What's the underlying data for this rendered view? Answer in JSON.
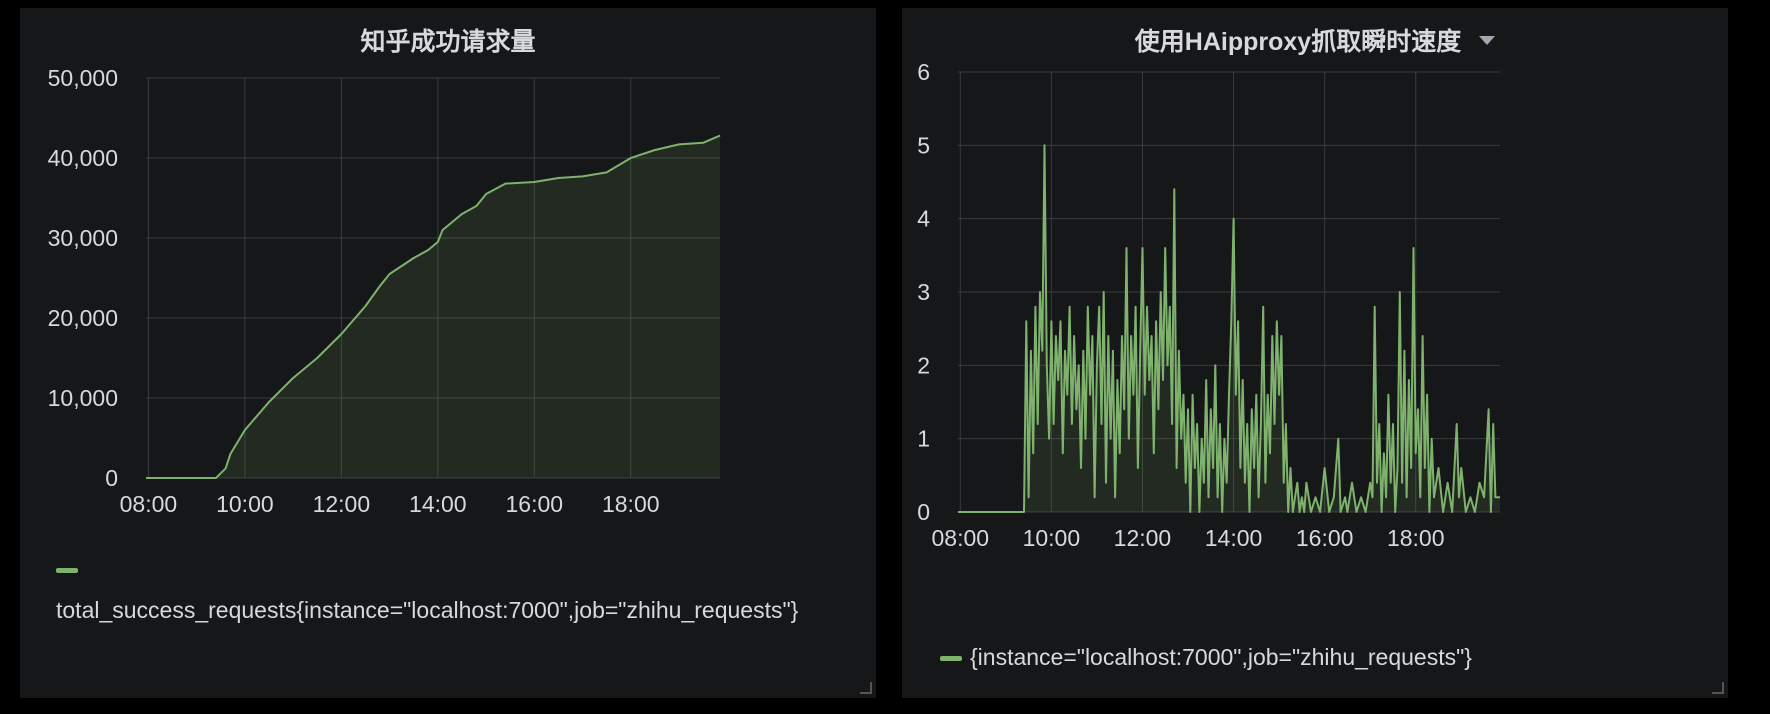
{
  "colors": {
    "series": "#7eb26d",
    "grid": "#3a3b3e",
    "panel": "#161719",
    "text": "#d8d9da"
  },
  "chart_data": [
    {
      "type": "area",
      "title": "知乎成功请求量",
      "xlabel": "",
      "ylabel": "",
      "x_ticks": [
        "08:00",
        "10:00",
        "12:00",
        "14:00",
        "16:00",
        "18:00"
      ],
      "y_ticks": [
        "0",
        "10,000",
        "20,000",
        "30,000",
        "40,000",
        "50,000"
      ],
      "xlim": [
        7.95,
        19.85
      ],
      "ylim": [
        0,
        50000
      ],
      "grid": true,
      "legend_position": "bottom-left",
      "series": [
        {
          "name": "total_success_requests{instance=\"localhost:7000\",job=\"zhihu_requests\"}",
          "points": [
            [
              7.95,
              0
            ],
            [
              9.4,
              0
            ],
            [
              9.6,
              1200
            ],
            [
              9.7,
              3000
            ],
            [
              10.0,
              6000
            ],
            [
              10.5,
              9500
            ],
            [
              11.0,
              12500
            ],
            [
              11.5,
              15000
            ],
            [
              12.0,
              18000
            ],
            [
              12.5,
              21500
            ],
            [
              12.8,
              24000
            ],
            [
              13.0,
              25500
            ],
            [
              13.5,
              27500
            ],
            [
              13.8,
              28500
            ],
            [
              14.0,
              29500
            ],
            [
              14.1,
              31000
            ],
            [
              14.5,
              33000
            ],
            [
              14.8,
              34000
            ],
            [
              15.0,
              35500
            ],
            [
              15.4,
              36800
            ],
            [
              16.0,
              37000
            ],
            [
              16.5,
              37500
            ],
            [
              17.0,
              37700
            ],
            [
              17.5,
              38200
            ],
            [
              18.0,
              40000
            ],
            [
              18.5,
              41000
            ],
            [
              19.0,
              41700
            ],
            [
              19.5,
              41900
            ],
            [
              19.85,
              42800
            ]
          ]
        }
      ]
    },
    {
      "type": "area",
      "title": "使用HAipproxy抓取瞬时速度",
      "xlabel": "",
      "ylabel": "",
      "x_ticks": [
        "08:00",
        "10:00",
        "12:00",
        "14:00",
        "16:00",
        "18:00"
      ],
      "y_ticks": [
        "0",
        "1",
        "2",
        "3",
        "4",
        "5",
        "6"
      ],
      "xlim": [
        7.95,
        19.85
      ],
      "ylim": [
        0,
        6
      ],
      "grid": true,
      "legend_position": "bottom-left",
      "series": [
        {
          "name": "{instance=\"localhost:7000\",job=\"zhihu_requests\"}",
          "points": [
            [
              7.95,
              0
            ],
            [
              9.4,
              0
            ],
            [
              9.45,
              2.6
            ],
            [
              9.5,
              0.2
            ],
            [
              9.55,
              2.2
            ],
            [
              9.6,
              0.8
            ],
            [
              9.65,
              2.8
            ],
            [
              9.7,
              1.2
            ],
            [
              9.75,
              3.0
            ],
            [
              9.8,
              2.2
            ],
            [
              9.85,
              5.0
            ],
            [
              9.9,
              2.0
            ],
            [
              9.95,
              1.0
            ],
            [
              10.0,
              2.6
            ],
            [
              10.05,
              1.2
            ],
            [
              10.1,
              2.4
            ],
            [
              10.15,
              1.8
            ],
            [
              10.2,
              2.6
            ],
            [
              10.25,
              0.8
            ],
            [
              10.3,
              2.2
            ],
            [
              10.35,
              1.6
            ],
            [
              10.4,
              2.8
            ],
            [
              10.45,
              1.2
            ],
            [
              10.5,
              2.4
            ],
            [
              10.55,
              1.4
            ],
            [
              10.6,
              2.0
            ],
            [
              10.65,
              0.6
            ],
            [
              10.7,
              2.2
            ],
            [
              10.75,
              1.0
            ],
            [
              10.8,
              2.8
            ],
            [
              10.85,
              1.6
            ],
            [
              10.9,
              2.4
            ],
            [
              10.95,
              0.2
            ],
            [
              11.0,
              2.0
            ],
            [
              11.05,
              2.8
            ],
            [
              11.1,
              1.2
            ],
            [
              11.15,
              3.0
            ],
            [
              11.2,
              0.4
            ],
            [
              11.25,
              2.4
            ],
            [
              11.3,
              1.0
            ],
            [
              11.35,
              2.2
            ],
            [
              11.4,
              0.2
            ],
            [
              11.45,
              1.8
            ],
            [
              11.5,
              0.8
            ],
            [
              11.55,
              2.4
            ],
            [
              11.6,
              1.4
            ],
            [
              11.65,
              3.6
            ],
            [
              11.7,
              1.0
            ],
            [
              11.75,
              2.4
            ],
            [
              11.8,
              1.6
            ],
            [
              11.85,
              2.8
            ],
            [
              11.9,
              0.6
            ],
            [
              11.95,
              2.2
            ],
            [
              12.0,
              3.6
            ],
            [
              12.05,
              1.6
            ],
            [
              12.1,
              2.8
            ],
            [
              12.15,
              1.8
            ],
            [
              12.2,
              2.4
            ],
            [
              12.25,
              0.8
            ],
            [
              12.3,
              2.6
            ],
            [
              12.35,
              1.4
            ],
            [
              12.4,
              3.0
            ],
            [
              12.45,
              1.8
            ],
            [
              12.5,
              3.6
            ],
            [
              12.55,
              2.0
            ],
            [
              12.6,
              2.8
            ],
            [
              12.65,
              1.2
            ],
            [
              12.7,
              4.4
            ],
            [
              12.75,
              0.6
            ],
            [
              12.8,
              2.2
            ],
            [
              12.85,
              1.0
            ],
            [
              12.9,
              1.6
            ],
            [
              12.95,
              0.4
            ],
            [
              13.0,
              1.4
            ],
            [
              13.05,
              0
            ],
            [
              13.1,
              1.6
            ],
            [
              13.15,
              0.6
            ],
            [
              13.2,
              1.2
            ],
            [
              13.25,
              0
            ],
            [
              13.3,
              1.0
            ],
            [
              13.35,
              0.4
            ],
            [
              13.4,
              1.8
            ],
            [
              13.45,
              0.2
            ],
            [
              13.5,
              1.4
            ],
            [
              13.55,
              0.6
            ],
            [
              13.6,
              2.0
            ],
            [
              13.65,
              0.2
            ],
            [
              13.7,
              1.2
            ],
            [
              13.75,
              0
            ],
            [
              13.8,
              1.0
            ],
            [
              13.85,
              0.4
            ],
            [
              13.9,
              1.6
            ],
            [
              13.95,
              2.6
            ],
            [
              14.0,
              4.0
            ],
            [
              14.05,
              1.6
            ],
            [
              14.1,
              2.6
            ],
            [
              14.15,
              0.6
            ],
            [
              14.2,
              1.8
            ],
            [
              14.25,
              0.4
            ],
            [
              14.3,
              1.2
            ],
            [
              14.35,
              0
            ],
            [
              14.4,
              1.4
            ],
            [
              14.45,
              0.6
            ],
            [
              14.5,
              1.6
            ],
            [
              14.55,
              0.2
            ],
            [
              14.6,
              1.2
            ],
            [
              14.65,
              2.8
            ],
            [
              14.7,
              0.4
            ],
            [
              14.75,
              1.6
            ],
            [
              14.8,
              0.8
            ],
            [
              14.85,
              2.4
            ],
            [
              14.9,
              1.2
            ],
            [
              14.95,
              2.6
            ],
            [
              15.0,
              1.6
            ],
            [
              15.05,
              2.4
            ],
            [
              15.1,
              0.4
            ],
            [
              15.15,
              1.2
            ],
            [
              15.2,
              0
            ],
            [
              15.25,
              0.6
            ],
            [
              15.3,
              0
            ],
            [
              15.35,
              0.2
            ],
            [
              15.4,
              0.4
            ],
            [
              15.45,
              0
            ],
            [
              15.5,
              0.2
            ],
            [
              15.55,
              0
            ],
            [
              15.6,
              0.4
            ],
            [
              15.65,
              0.2
            ],
            [
              15.7,
              0
            ],
            [
              15.8,
              0.2
            ],
            [
              15.9,
              0
            ],
            [
              16.0,
              0.6
            ],
            [
              16.1,
              0
            ],
            [
              16.2,
              0.2
            ],
            [
              16.3,
              1.0
            ],
            [
              16.35,
              0
            ],
            [
              16.45,
              0.2
            ],
            [
              16.5,
              0
            ],
            [
              16.6,
              0.4
            ],
            [
              16.7,
              0
            ],
            [
              16.8,
              0.2
            ],
            [
              16.9,
              0
            ],
            [
              17.0,
              0.4
            ],
            [
              17.05,
              0.2
            ],
            [
              17.1,
              2.8
            ],
            [
              17.15,
              0.4
            ],
            [
              17.2,
              1.2
            ],
            [
              17.25,
              0
            ],
            [
              17.3,
              0.8
            ],
            [
              17.35,
              0.2
            ],
            [
              17.4,
              1.6
            ],
            [
              17.45,
              0.4
            ],
            [
              17.5,
              1.2
            ],
            [
              17.55,
              0
            ],
            [
              17.6,
              0.6
            ],
            [
              17.65,
              3.0
            ],
            [
              17.7,
              0.4
            ],
            [
              17.75,
              2.2
            ],
            [
              17.8,
              0.2
            ],
            [
              17.85,
              1.8
            ],
            [
              17.9,
              0.6
            ],
            [
              17.95,
              3.6
            ],
            [
              18.0,
              0.8
            ],
            [
              18.05,
              1.4
            ],
            [
              18.1,
              0.2
            ],
            [
              18.15,
              2.4
            ],
            [
              18.2,
              0.6
            ],
            [
              18.25,
              1.6
            ],
            [
              18.3,
              0
            ],
            [
              18.35,
              1.0
            ],
            [
              18.4,
              0.2
            ],
            [
              18.5,
              0.6
            ],
            [
              18.6,
              0
            ],
            [
              18.7,
              0.4
            ],
            [
              18.8,
              0
            ],
            [
              18.9,
              1.2
            ],
            [
              18.95,
              0.2
            ],
            [
              19.0,
              0.6
            ],
            [
              19.1,
              0
            ],
            [
              19.2,
              0.2
            ],
            [
              19.3,
              0
            ],
            [
              19.4,
              0.4
            ],
            [
              19.5,
              0.2
            ],
            [
              19.6,
              1.4
            ],
            [
              19.65,
              0
            ],
            [
              19.7,
              1.2
            ],
            [
              19.75,
              0.2
            ],
            [
              19.85,
              0.2
            ]
          ]
        }
      ]
    }
  ]
}
